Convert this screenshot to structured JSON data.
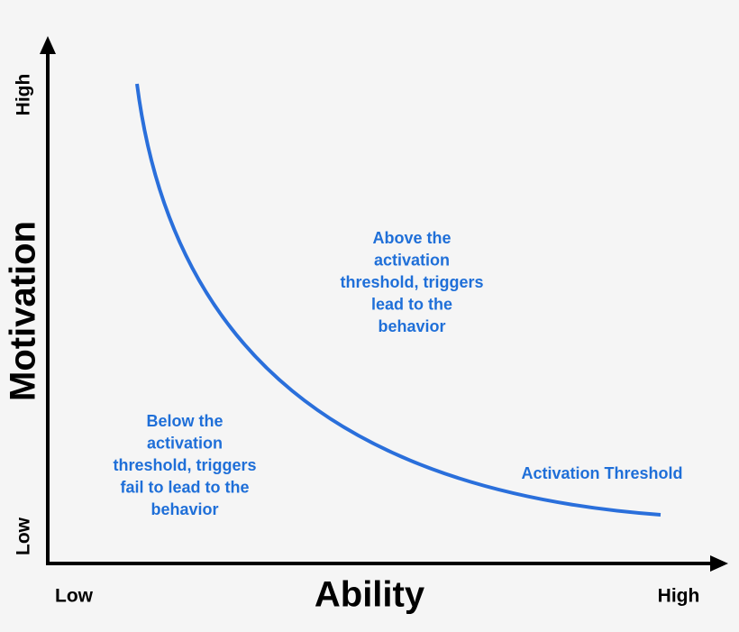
{
  "y_axis": {
    "title": "Motivation",
    "low": "Low",
    "high": "High"
  },
  "x_axis": {
    "title": "Ability",
    "low": "Low",
    "high": "High"
  },
  "annotations": {
    "above": [
      "Above the",
      "activation",
      "threshold, triggers",
      "lead to the",
      "behavior"
    ],
    "below": [
      "Below the",
      "activation",
      "threshold, triggers",
      "fail to lead to the",
      "behavior"
    ],
    "curve_label": "Activation Threshold"
  }
}
